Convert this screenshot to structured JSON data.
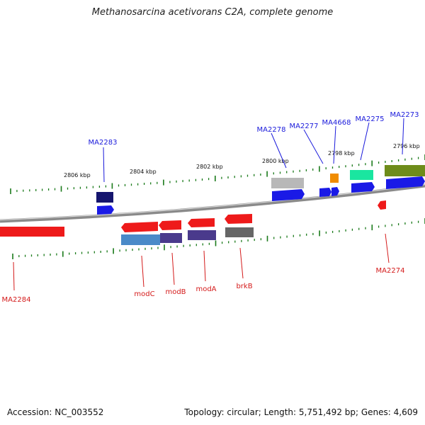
{
  "title": "Methanosarcina acetivorans C2A, complete genome",
  "footer": {
    "accession": "Accession: NC_003552",
    "summary": "Topology: circular; Length: 5,751,492 bp; Genes: 4,609"
  },
  "scale_labels": [
    "2806 kbp",
    "2804 kbp",
    "2802 kbp",
    "2800 kbp",
    "2798 kbp",
    "2796 kbp"
  ],
  "upper_labels": [
    "MA2283",
    "MA2278",
    "MA2277",
    "MA4668",
    "MA2275",
    "MA2273"
  ],
  "lower_labels": [
    "MA2284",
    "modC",
    "modB",
    "modA",
    "brkB",
    "MA2274"
  ],
  "colors": {
    "upper_label": "#1a1adb",
    "lower_label": "#d41a1a",
    "tick": "#1a7a1a",
    "backbone": "#8a8a8a",
    "forward_gene": "#1a1ae6",
    "reverse_gene": "#ee1a1a"
  }
}
